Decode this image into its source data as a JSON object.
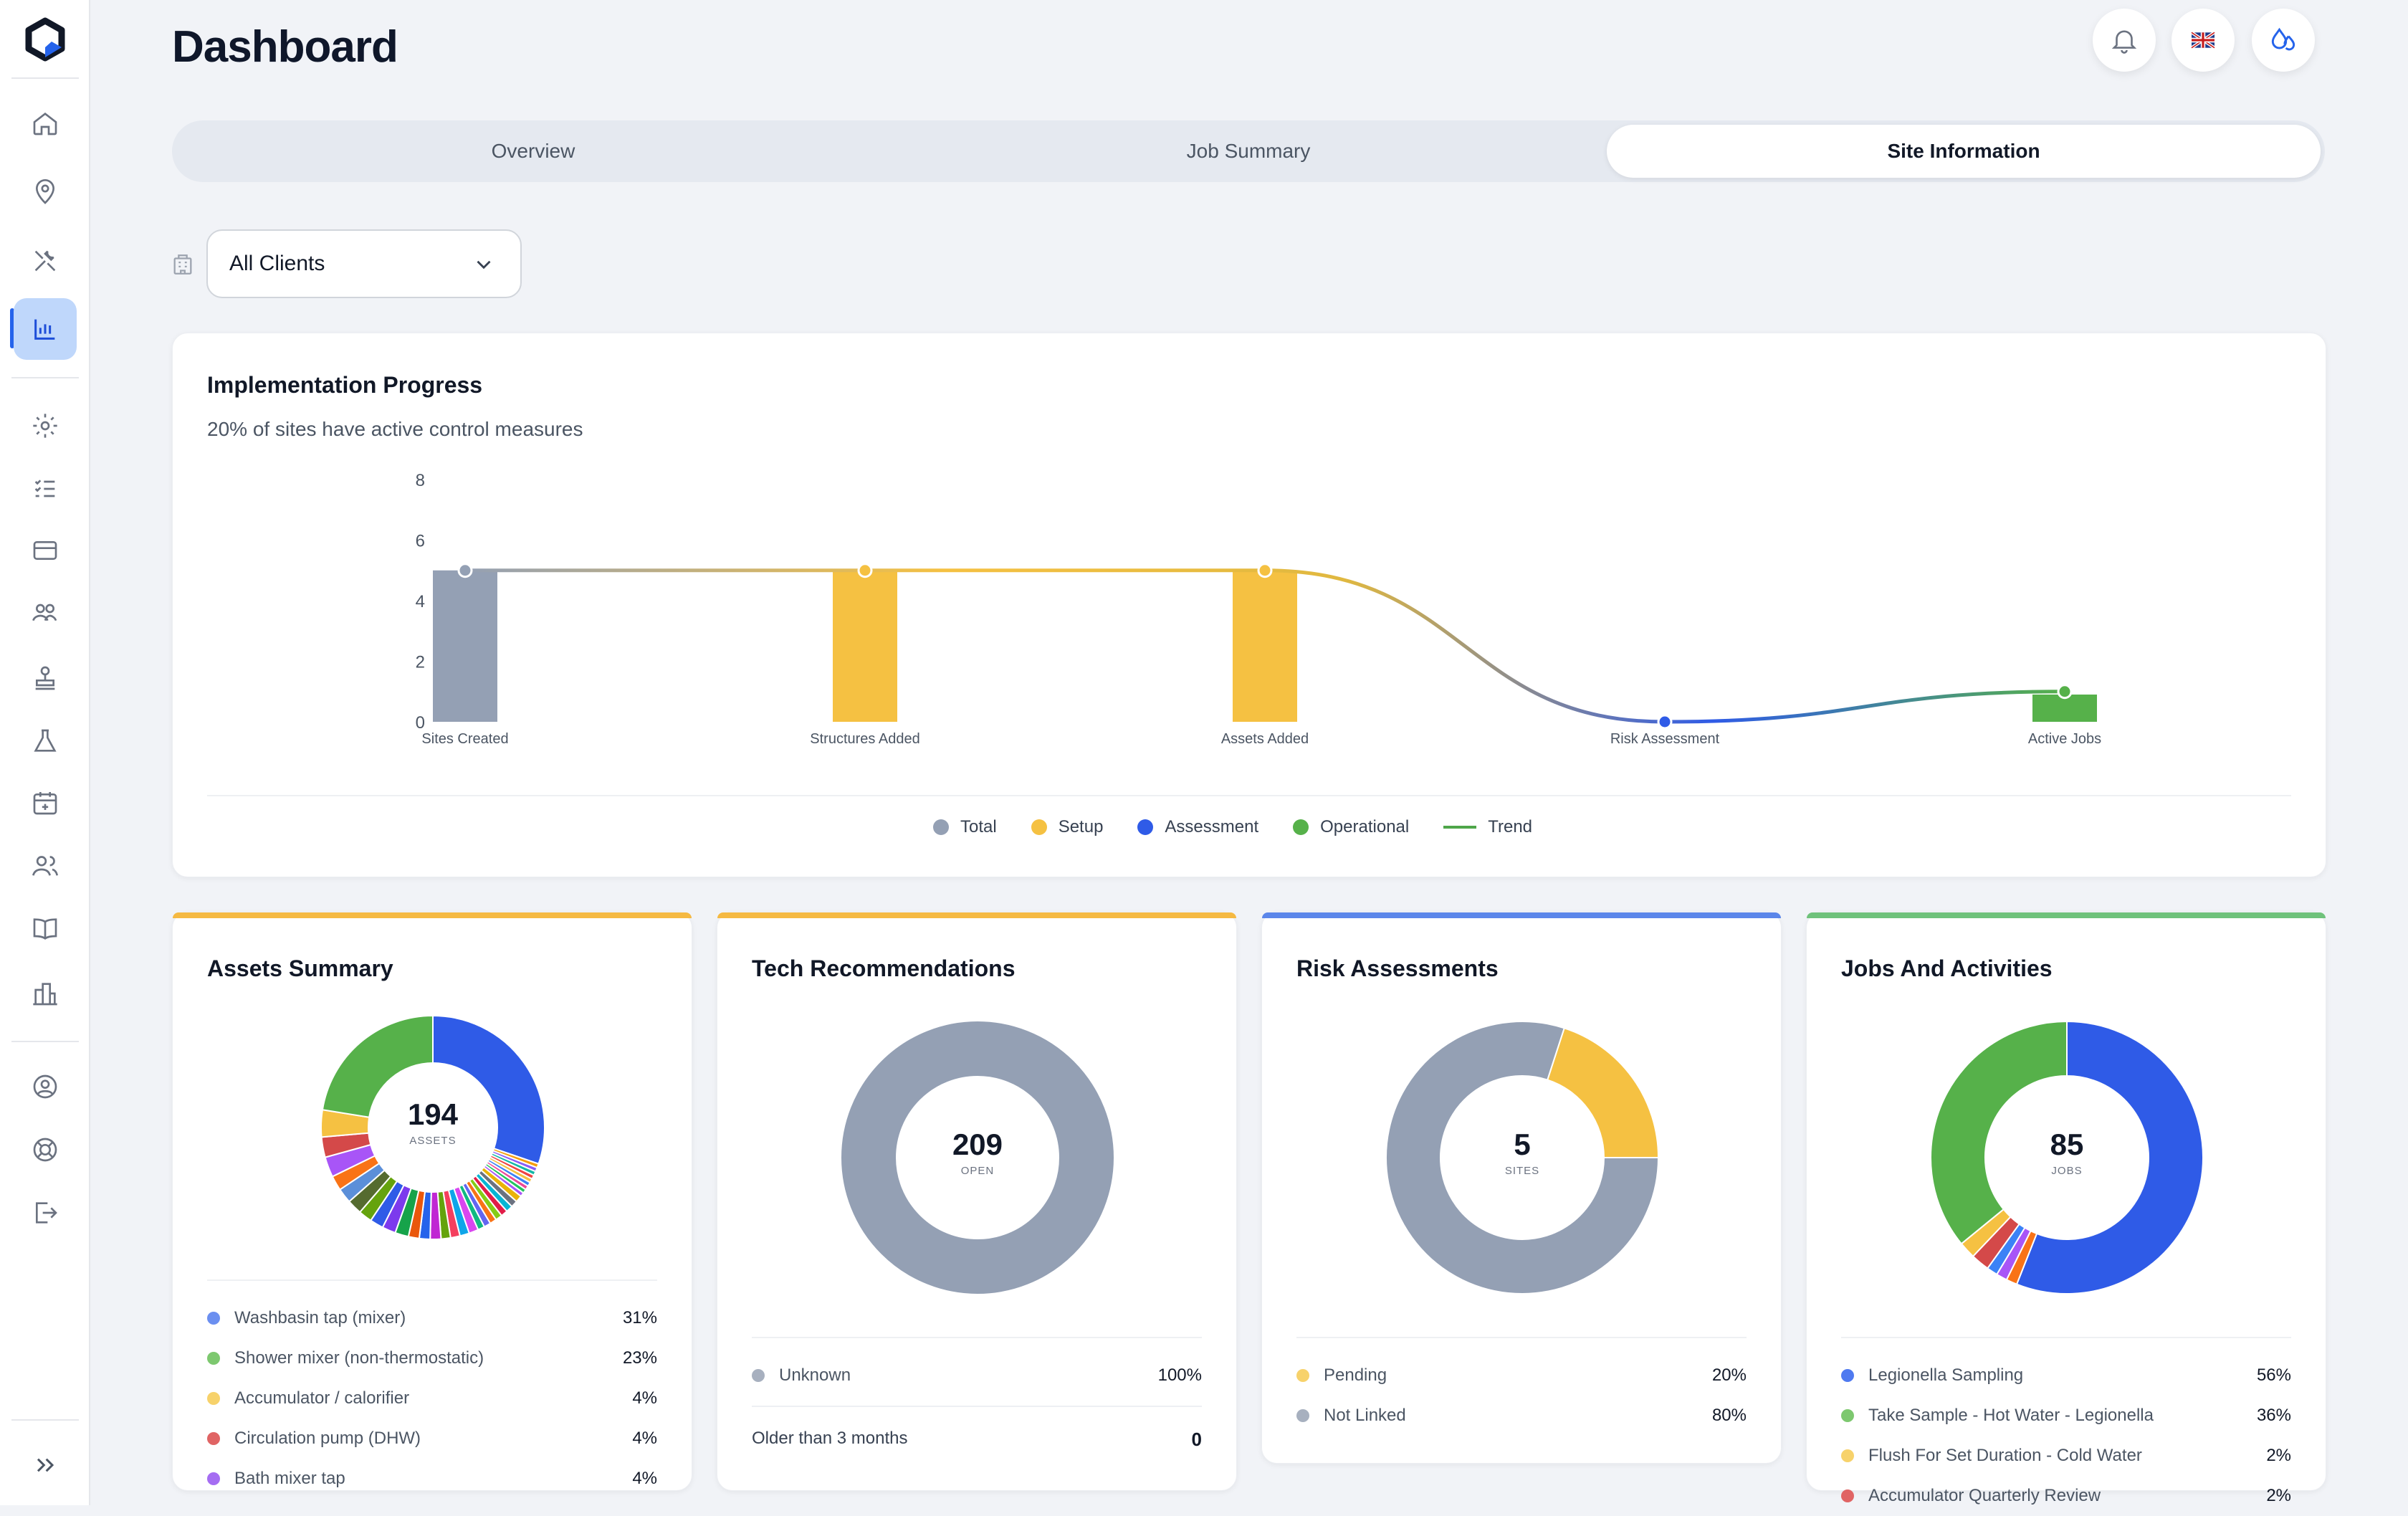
{
  "header": {
    "title": "Dashboard",
    "language_flag": "🇬🇧"
  },
  "tabs": [
    {
      "label": "Overview"
    },
    {
      "label": "Job Summary"
    },
    {
      "label": "Site Information"
    }
  ],
  "filter": {
    "selected": "All Clients"
  },
  "implementation": {
    "title": "Implementation Progress",
    "subtitle": "20% of sites have active control measures",
    "legend": [
      {
        "label": "Total",
        "color": "#94a0b4"
      },
      {
        "label": "Setup",
        "color": "#f5c142"
      },
      {
        "label": "Assessment",
        "color": "#2f5be7"
      },
      {
        "label": "Operational",
        "color": "#56b14a"
      },
      {
        "label": "Trend",
        "color": "#4ea64a"
      }
    ]
  },
  "chart_data": {
    "type": "bar",
    "categories": [
      "Sites Created",
      "Structures Added",
      "Assets Added",
      "Risk Assessment",
      "Active Jobs"
    ],
    "values": [
      5,
      5,
      5,
      0,
      1
    ],
    "colors": [
      "#94a0b4",
      "#f5c142",
      "#f5c142",
      "#2f5be7",
      "#56b14a"
    ],
    "yticks": [
      0,
      2,
      4,
      6,
      8
    ],
    "ylim": [
      0,
      8
    ],
    "trend_line": true
  },
  "assets": {
    "title": "Assets Summary",
    "center_value": "194",
    "center_label": "ASSETS",
    "slices": [
      {
        "v": 31,
        "c": "#2f5be7"
      },
      {
        "v": 0.6,
        "c": "#f59e0b"
      },
      {
        "v": 0.6,
        "c": "#8b5cf6"
      },
      {
        "v": 0.6,
        "c": "#14b8a6"
      },
      {
        "v": 0.6,
        "c": "#ef4444"
      },
      {
        "v": 0.6,
        "c": "#f5c142"
      },
      {
        "v": 0.6,
        "c": "#3b82f6"
      },
      {
        "v": 0.6,
        "c": "#ec4899"
      },
      {
        "v": 0.6,
        "c": "#22c55e"
      },
      {
        "v": 0.6,
        "c": "#a855f7"
      },
      {
        "v": 1,
        "c": "#eab308"
      },
      {
        "v": 1,
        "c": "#6b7280"
      },
      {
        "v": 1,
        "c": "#06b6d4"
      },
      {
        "v": 1,
        "c": "#e11d48"
      },
      {
        "v": 1,
        "c": "#84cc16"
      },
      {
        "v": 1,
        "c": "#f97316"
      },
      {
        "v": 1,
        "c": "#6366f1"
      },
      {
        "v": 1,
        "c": "#10b981"
      },
      {
        "v": 1.4,
        "c": "#d946ef"
      },
      {
        "v": 1.4,
        "c": "#0ea5e9"
      },
      {
        "v": 1.4,
        "c": "#f43f5e"
      },
      {
        "v": 1.4,
        "c": "#65a30d"
      },
      {
        "v": 1.6,
        "c": "#c026d3"
      },
      {
        "v": 1.6,
        "c": "#2563eb"
      },
      {
        "v": 1.6,
        "c": "#ea580c"
      },
      {
        "v": 2,
        "c": "#16a34a"
      },
      {
        "v": 2,
        "c": "#7c3aed"
      },
      {
        "v": 2,
        "c": "#2f5be7"
      },
      {
        "v": 2,
        "c": "#65a30d"
      },
      {
        "v": 2.2,
        "c": "#556b2f"
      },
      {
        "v": 2.2,
        "c": "#5b8fd9"
      },
      {
        "v": 2.2,
        "c": "#f97316"
      },
      {
        "v": 3,
        "c": "#a855f7"
      },
      {
        "v": 3,
        "c": "#d44949"
      },
      {
        "v": 4,
        "c": "#f5c142"
      },
      {
        "v": 23,
        "c": "#56b14a"
      }
    ],
    "rows": [
      {
        "label": "Washbasin tap (mixer)",
        "pct": "31%",
        "color": "#6b8ff0"
      },
      {
        "label": "Shower mixer (non-thermostatic)",
        "pct": "23%",
        "color": "#7dc86f"
      },
      {
        "label": "Accumulator / calorifier",
        "pct": "4%",
        "color": "#f7d26b"
      },
      {
        "label": "Circulation pump (DHW)",
        "pct": "4%",
        "color": "#e06464"
      },
      {
        "label": "Bath mixer tap",
        "pct": "4%",
        "color": "#a56df2"
      }
    ]
  },
  "tech": {
    "title": "Tech Recommendations",
    "center_value": "209",
    "center_label": "OPEN",
    "slices": [
      {
        "v": 100,
        "c": "#94a0b4"
      }
    ],
    "rows": [
      {
        "label": "Unknown",
        "pct": "100%",
        "color": "#a7b0bf"
      }
    ],
    "older_label": "Older than 3 months",
    "older_value": "0"
  },
  "risk": {
    "title": "Risk Assessments",
    "center_value": "5",
    "center_label": "SITES",
    "slices": [
      {
        "v": 20,
        "c": "#f5c142"
      },
      {
        "v": 80,
        "c": "#94a0b4"
      }
    ],
    "rows": [
      {
        "label": "Pending",
        "pct": "20%",
        "color": "#f7d26b"
      },
      {
        "label": "Not Linked",
        "pct": "80%",
        "color": "#a7b0bf"
      }
    ]
  },
  "jobs": {
    "title": "Jobs And Activities",
    "center_value": "85",
    "center_label": "JOBS",
    "slices": [
      {
        "v": 56,
        "c": "#2f5be7"
      },
      {
        "v": 1.3,
        "c": "#f97316"
      },
      {
        "v": 1.3,
        "c": "#a855f7"
      },
      {
        "v": 1.3,
        "c": "#3b82f6"
      },
      {
        "v": 2.2,
        "c": "#d44949"
      },
      {
        "v": 2,
        "c": "#f5c142"
      },
      {
        "v": 35.9,
        "c": "#56b14a"
      }
    ],
    "rows": [
      {
        "label": "Legionella Sampling",
        "pct": "56%",
        "color": "#4f7af0"
      },
      {
        "label": "Take Sample - Hot Water - Legionella",
        "pct": "36%",
        "color": "#7dc86f"
      },
      {
        "label": "Flush For Set Duration - Cold Water",
        "pct": "2%",
        "color": "#f7d26b"
      },
      {
        "label": "Accumulator Quarterly Review",
        "pct": "2%",
        "color": "#e06464"
      }
    ]
  }
}
